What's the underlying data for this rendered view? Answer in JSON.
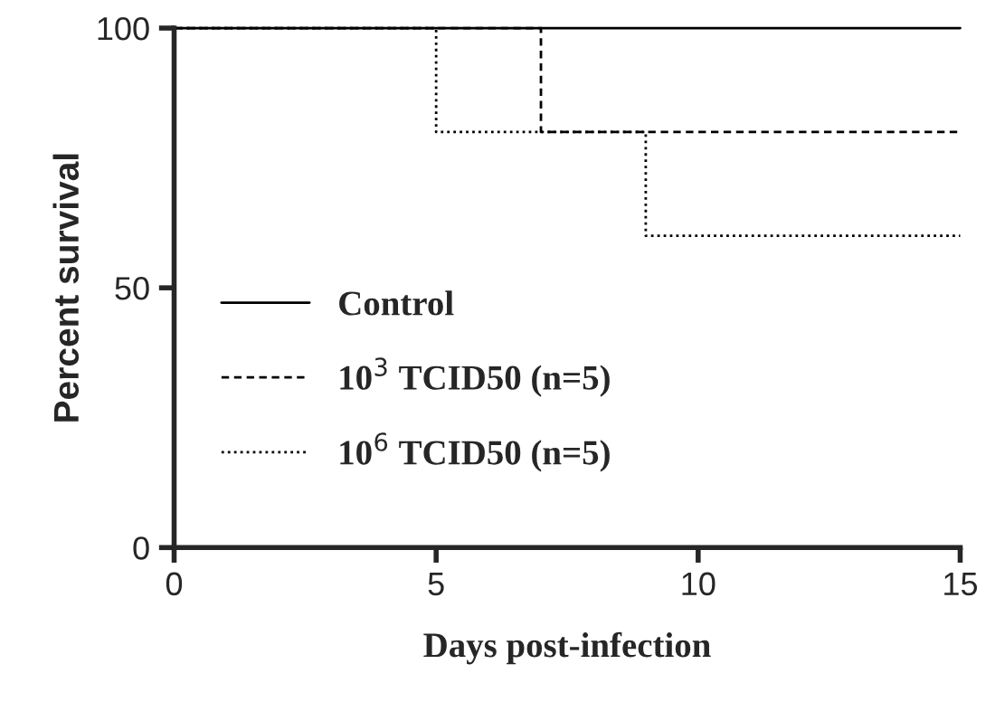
{
  "chart_data": {
    "type": "step",
    "xlabel": "Days post-infection",
    "ylabel": "Percent survival",
    "xlim": [
      0,
      15
    ],
    "xticks": [
      0,
      5,
      10,
      15
    ],
    "ylim": [
      0,
      100
    ],
    "yticks": [
      0,
      50,
      100
    ],
    "grid": false,
    "legend": "left",
    "series": [
      {
        "name": "Control",
        "color": "#000000",
        "line_style": "solid",
        "x": [
          0,
          15
        ],
        "values": [
          100,
          100
        ]
      },
      {
        "name": "10$^{3}$ TCID50 (n=5)",
        "color": "#000000",
        "line_style": "dashed",
        "x": [
          0,
          7,
          15
        ],
        "values": [
          100,
          80,
          80
        ]
      },
      {
        "name": "10$^{6}$ TCID50 (n=5)",
        "color": "#000000",
        "line_style": "dotted",
        "x": [
          0,
          5,
          9,
          15
        ],
        "values": [
          100,
          80,
          60,
          60
        ]
      }
    ]
  }
}
